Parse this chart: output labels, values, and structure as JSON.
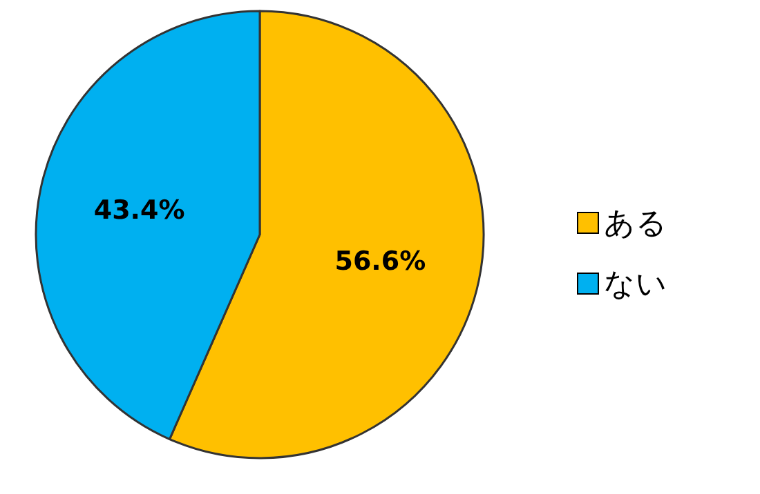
{
  "chart_data": {
    "type": "pie",
    "categories": [
      "ある",
      "ない"
    ],
    "values": [
      56.6,
      43.4
    ],
    "colors": [
      "#ffc000",
      "#00b0f0"
    ],
    "value_labels": [
      "56.6%",
      "43.4%"
    ],
    "legend": "right"
  }
}
